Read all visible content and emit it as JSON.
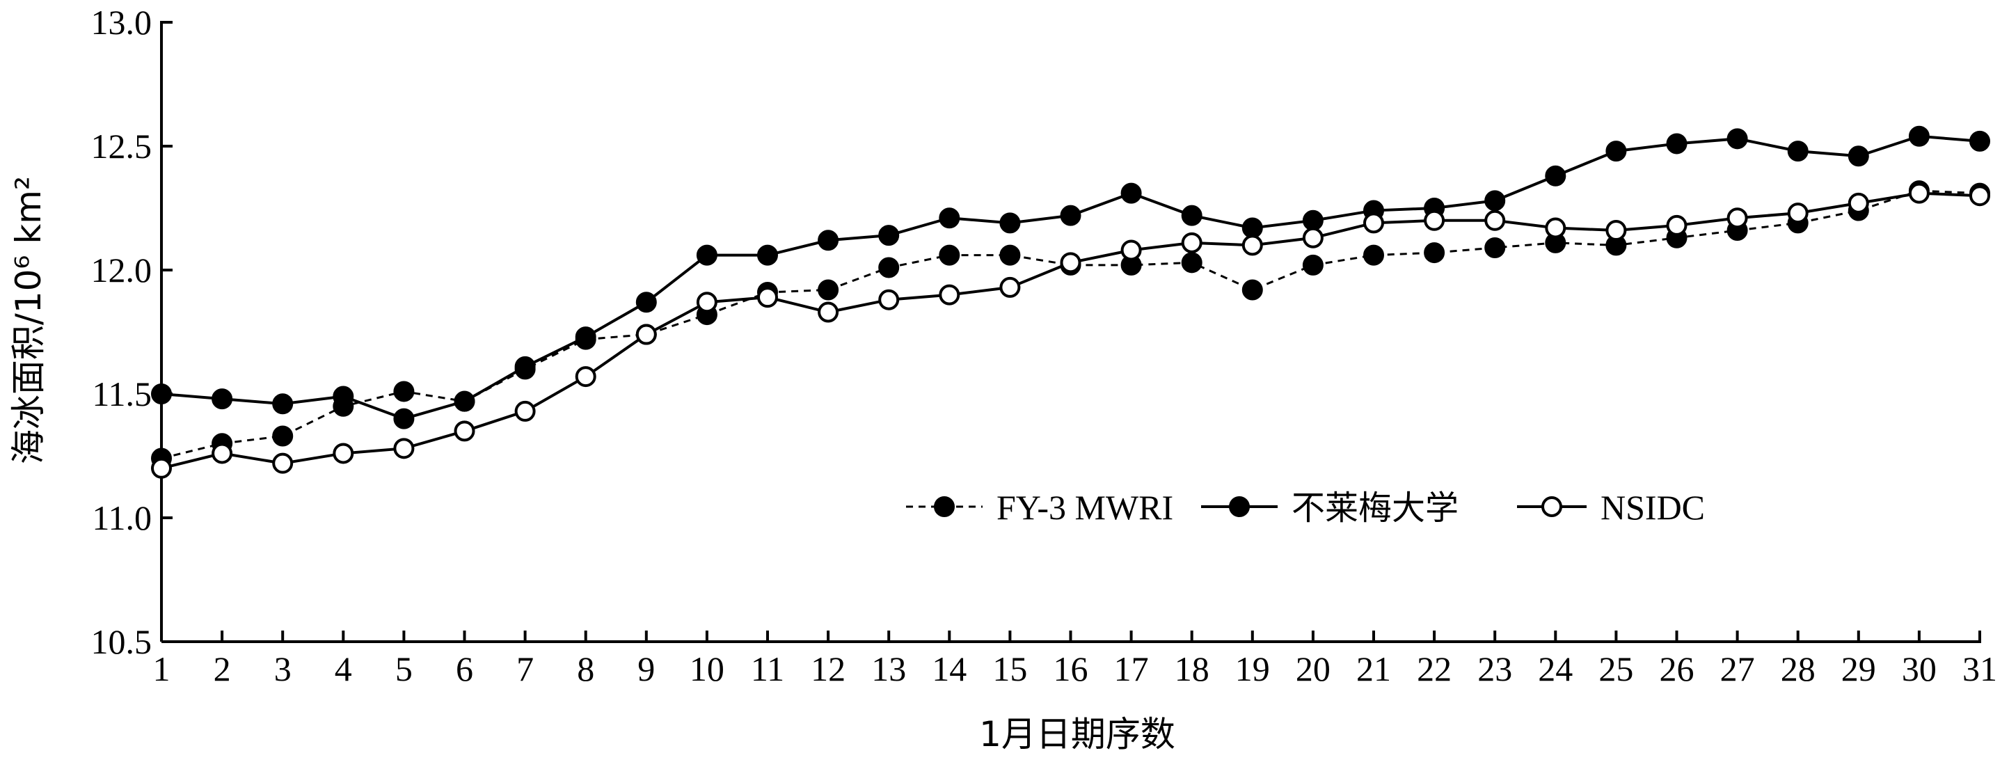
{
  "chart_data": {
    "type": "line",
    "title": "",
    "xlabel": "1月日期序数",
    "ylabel": "海冰面积/10⁶ km²",
    "x": [
      1,
      2,
      3,
      4,
      5,
      6,
      7,
      8,
      9,
      10,
      11,
      12,
      13,
      14,
      15,
      16,
      17,
      18,
      19,
      20,
      21,
      22,
      23,
      24,
      25,
      26,
      27,
      28,
      29,
      30,
      31
    ],
    "xlim": [
      1,
      31
    ],
    "ylim": [
      10.5,
      13.0
    ],
    "yticks": [
      "10.5",
      "11.0",
      "11.5",
      "12.0",
      "12.5",
      "13.0"
    ],
    "xticks": [
      "1",
      "2",
      "3",
      "4",
      "5",
      "6",
      "7",
      "8",
      "9",
      "10",
      "11",
      "12",
      "13",
      "14",
      "15",
      "16",
      "17",
      "18",
      "19",
      "20",
      "21",
      "22",
      "23",
      "24",
      "25",
      "26",
      "27",
      "28",
      "29",
      "30",
      "31"
    ],
    "grid": false,
    "legend_position": "center-right",
    "series": [
      {
        "name": "FY-3 MWRI",
        "style": "dashed",
        "marker": "filled",
        "color": "#000000",
        "values": [
          11.24,
          11.3,
          11.33,
          11.45,
          11.51,
          11.47,
          11.6,
          11.72,
          11.74,
          11.82,
          11.91,
          11.92,
          12.01,
          12.06,
          12.06,
          12.02,
          12.02,
          12.03,
          11.92,
          12.02,
          12.06,
          12.07,
          12.09,
          12.11,
          12.1,
          12.13,
          12.16,
          12.19,
          12.24,
          12.32,
          12.31
        ]
      },
      {
        "name": "不莱梅大学",
        "style": "solid",
        "marker": "filled",
        "color": "#000000",
        "values": [
          11.5,
          11.48,
          11.46,
          11.49,
          11.4,
          11.47,
          11.61,
          11.73,
          11.87,
          12.06,
          12.06,
          12.12,
          12.14,
          12.21,
          12.19,
          12.22,
          12.31,
          12.22,
          12.17,
          12.2,
          12.24,
          12.25,
          12.28,
          12.38,
          12.48,
          12.51,
          12.53,
          12.48,
          12.46,
          12.54,
          12.52
        ]
      },
      {
        "name": "NSIDC",
        "style": "solid",
        "marker": "open",
        "color": "#000000",
        "values": [
          11.2,
          11.26,
          11.22,
          11.26,
          11.28,
          11.35,
          11.43,
          11.57,
          11.74,
          11.87,
          11.89,
          11.83,
          11.88,
          11.9,
          11.93,
          12.03,
          12.08,
          12.11,
          12.1,
          12.13,
          12.19,
          12.2,
          12.2,
          12.17,
          12.16,
          12.18,
          12.21,
          12.23,
          12.27,
          12.31,
          12.3
        ]
      }
    ]
  }
}
